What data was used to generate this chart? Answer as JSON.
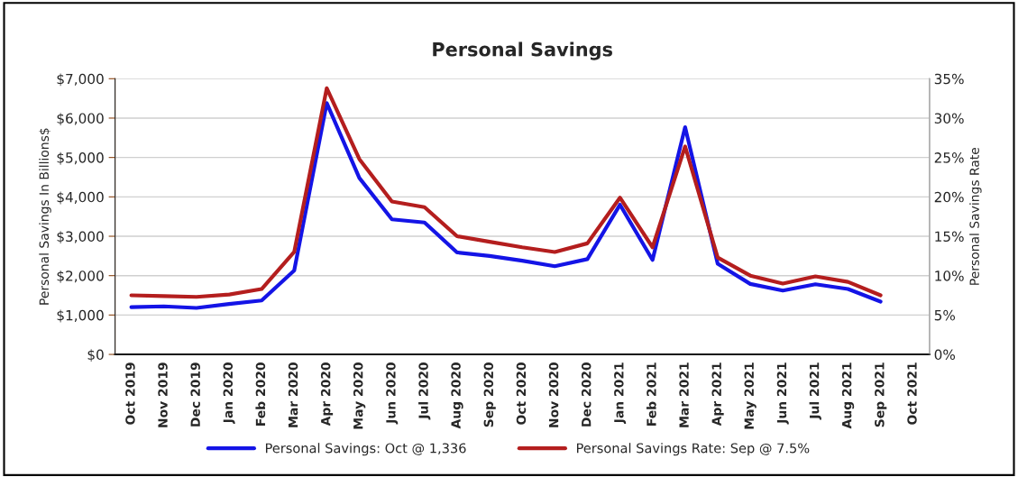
{
  "chart_data": {
    "type": "line",
    "title": "Personal Savings",
    "ylabel": "Personal Savings In Billions$",
    "y2label": "Personal Savings Rate",
    "categories": [
      "Oct 2019",
      "Nov 2019",
      "Dec 2019",
      "Jan 2020",
      "Feb 2020",
      "Mar 2020",
      "Apr 2020",
      "May 2020",
      "Jun 2020",
      "Jul 2020",
      "Aug 2020",
      "Sep 2020",
      "Oct 2020",
      "Nov 2020",
      "Dec 2020",
      "Jan 2021",
      "Feb 2021",
      "Mar 2021",
      "Apr 2021",
      "May 2021",
      "Jun 2021",
      "Jul 2021",
      "Aug 2021",
      "Sep 2021",
      "Oct 2021"
    ],
    "series": [
      {
        "name": "Personal Savings: Oct @ 1,336",
        "color": "#1414e6",
        "values": [
          1200,
          1220,
          1180,
          1280,
          1370,
          2130,
          6380,
          4480,
          3430,
          3350,
          2590,
          2500,
          2380,
          2240,
          2420,
          3800,
          2400,
          5770,
          2300,
          1790,
          1620,
          1780,
          1660,
          1340,
          null
        ]
      },
      {
        "name": "Personal Savings Rate: Sep @ 7.5%",
        "color": "#b41e1e",
        "axis": "y2",
        "values": [
          7.5,
          7.4,
          7.3,
          7.6,
          8.3,
          13.0,
          33.8,
          24.8,
          19.4,
          18.7,
          15.0,
          14.3,
          13.6,
          13.0,
          14.1,
          19.9,
          13.6,
          26.4,
          12.3,
          10.0,
          9.0,
          9.9,
          9.2,
          7.5,
          null
        ]
      }
    ],
    "ylim": [
      0,
      7000
    ],
    "yticks": [
      {
        "value": 0,
        "label": "$0"
      },
      {
        "value": 1000,
        "label": "$1,000"
      },
      {
        "value": 2000,
        "label": "$2,000"
      },
      {
        "value": 3000,
        "label": "$3,000"
      },
      {
        "value": 4000,
        "label": "$4,000"
      },
      {
        "value": 5000,
        "label": "$5,000"
      },
      {
        "value": 6000,
        "label": "$6,000"
      },
      {
        "value": 7000,
        "label": "$7,000"
      }
    ],
    "y2lim": [
      0,
      35
    ],
    "y2ticks": [
      {
        "value": 0,
        "label": "0%"
      },
      {
        "value": 5,
        "label": "5%"
      },
      {
        "value": 10,
        "label": "10%"
      },
      {
        "value": 15,
        "label": "15%"
      },
      {
        "value": 20,
        "label": "20%"
      },
      {
        "value": 25,
        "label": "25%"
      },
      {
        "value": 30,
        "label": "30%"
      },
      {
        "value": 35,
        "label": "35%"
      }
    ],
    "grid": "y",
    "legend": "bottom",
    "marker": "none",
    "line_style": "solid"
  }
}
